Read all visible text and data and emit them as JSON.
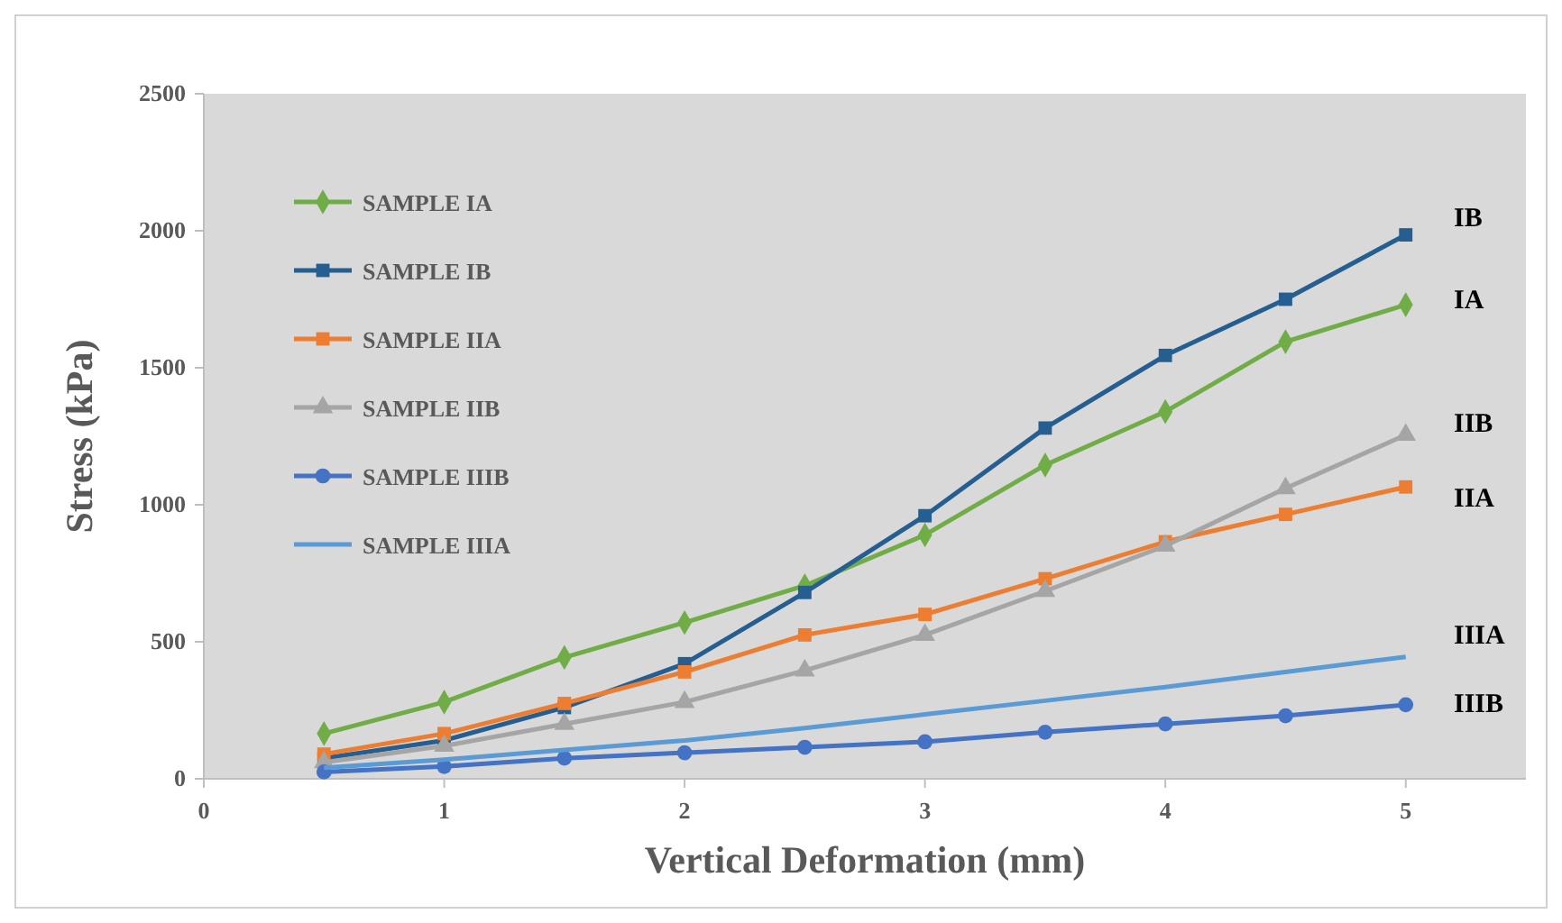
{
  "chart_data": {
    "type": "line",
    "xlabel": "Vertical Deformation (mm)",
    "ylabel": "Stress (kPa)",
    "x": [
      0.5,
      1,
      1.5,
      2,
      2.5,
      3,
      3.5,
      4,
      4.5,
      5
    ],
    "xlim": [
      0,
      5.5
    ],
    "xticks": [
      0,
      1,
      2,
      3,
      4,
      5
    ],
    "ylim": [
      0,
      2500
    ],
    "yticks": [
      0,
      500,
      1000,
      1500,
      2000,
      2500
    ],
    "grid": false,
    "legend": "top left",
    "line_style": "solid",
    "series": [
      {
        "name": "SAMPLE IA",
        "color": "#70ad47",
        "marker": "diamond",
        "values": [
          165,
          280,
          443,
          570,
          705,
          890,
          1145,
          1340,
          1595,
          1730
        ]
      },
      {
        "name": "SAMPLE IB",
        "color": "#255e91",
        "marker": "square",
        "values": [
          75,
          140,
          260,
          420,
          680,
          960,
          1280,
          1545,
          1750,
          1985
        ]
      },
      {
        "name": "SAMPLE IIA",
        "color": "#ed7d31",
        "marker": "square",
        "values": [
          90,
          165,
          275,
          390,
          525,
          600,
          730,
          865,
          965,
          1065
        ]
      },
      {
        "name": "SAMPLE IIB",
        "color": "#a5a5a5",
        "marker": "triangle",
        "values": [
          60,
          120,
          200,
          280,
          395,
          525,
          685,
          850,
          1060,
          1255
        ]
      },
      {
        "name": "SAMPLE IIIB",
        "color": "#4472c4",
        "marker": "circle",
        "values": [
          25,
          45,
          75,
          95,
          115,
          135,
          170,
          200,
          230,
          270
        ]
      },
      {
        "name": "SAMPLE IIIA",
        "color": "#5b9bd5",
        "marker": "none",
        "values": [
          40,
          70,
          105,
          140,
          185,
          235,
          285,
          335,
          390,
          445
        ]
      }
    ],
    "annotations": [
      "IB",
      "IA",
      "IIB",
      "IIA",
      "IIIA",
      "IIIB"
    ]
  }
}
